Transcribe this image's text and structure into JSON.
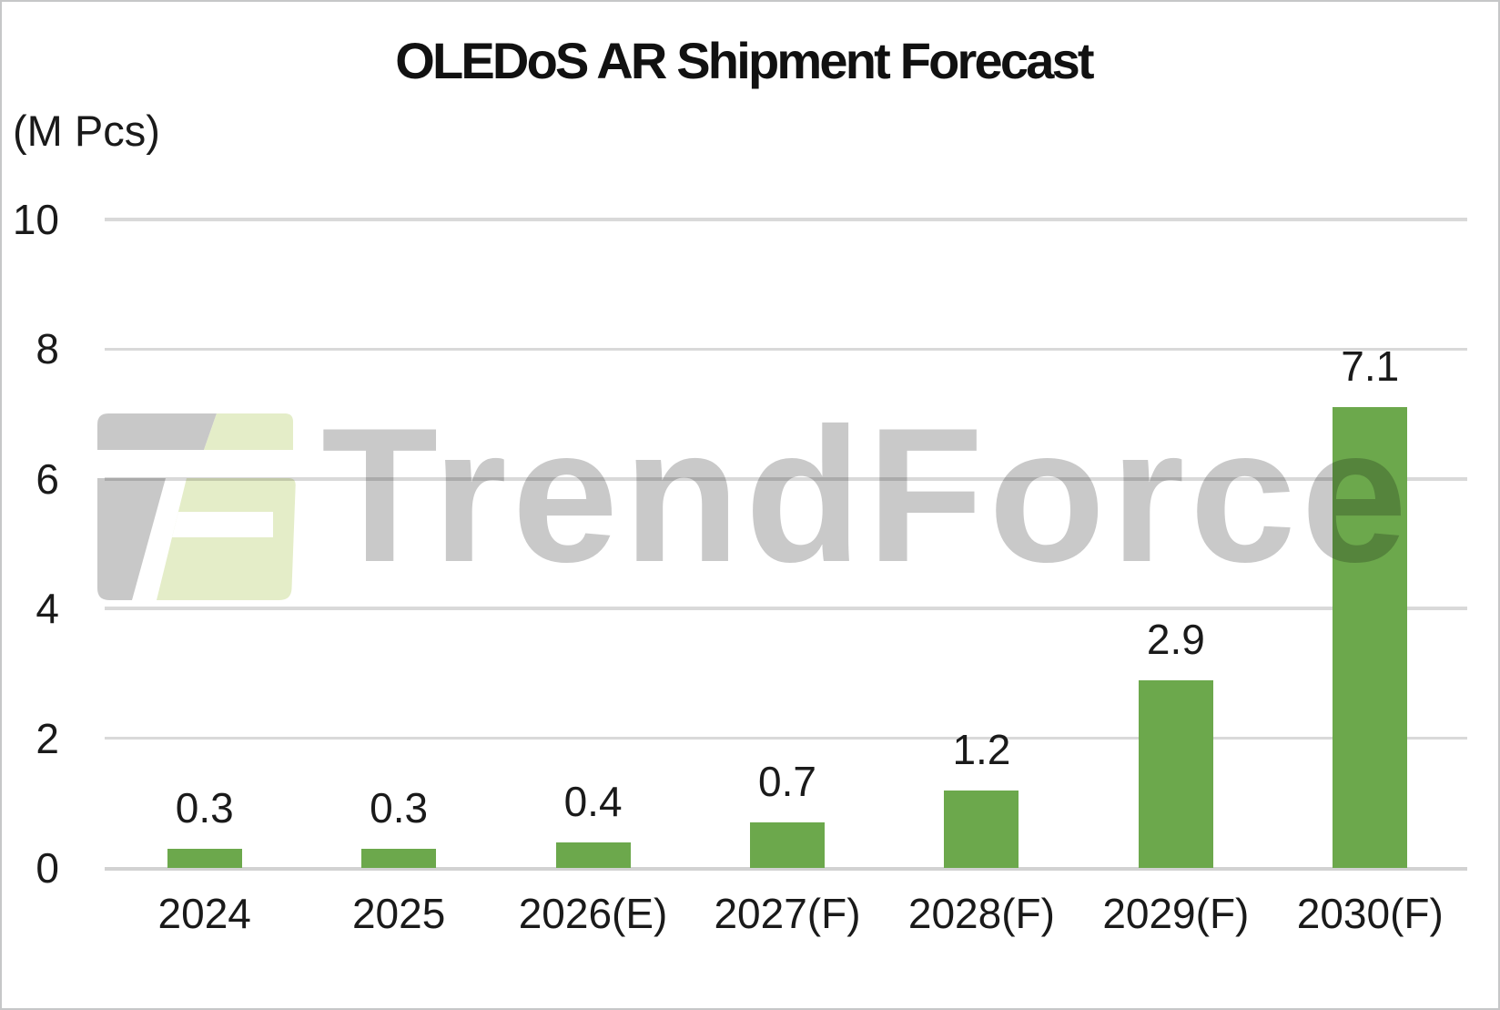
{
  "page": {
    "background": "#FFFFFF",
    "border_color": "#C6C7C8"
  },
  "chart_data": {
    "type": "bar",
    "title": "OLEDoS AR Shipment Forecast",
    "unit_label": "(M Pcs)",
    "categories": [
      "2024",
      "2025",
      "2026(E)",
      "2027(F)",
      "2028(F)",
      "2029(F)",
      "2030(F)"
    ],
    "values": [
      0.3,
      0.3,
      0.4,
      0.7,
      1.2,
      2.9,
      7.1
    ],
    "value_labels": [
      "0.3",
      "0.3",
      "0.4",
      "0.7",
      "1.2",
      "2.9",
      "7.1"
    ],
    "xlabel": "",
    "ylabel": "(M Pcs)",
    "ylim": [
      0,
      10
    ],
    "y_ticks": [
      0,
      2,
      4,
      6,
      8,
      10
    ],
    "grid": true,
    "legend": "none",
    "bar_color": "#6CA84C",
    "gridline_color": "#D9D9D9",
    "axis_line_color": "#D2D2D2",
    "label_color": "#1A1A1A"
  },
  "watermark": {
    "text": "TrendForce",
    "text_color": "#C9C9C9",
    "logo_gray": "#C8C8C8",
    "logo_green": "#E4EDC8",
    "logo_white": "#FFFFFF"
  }
}
